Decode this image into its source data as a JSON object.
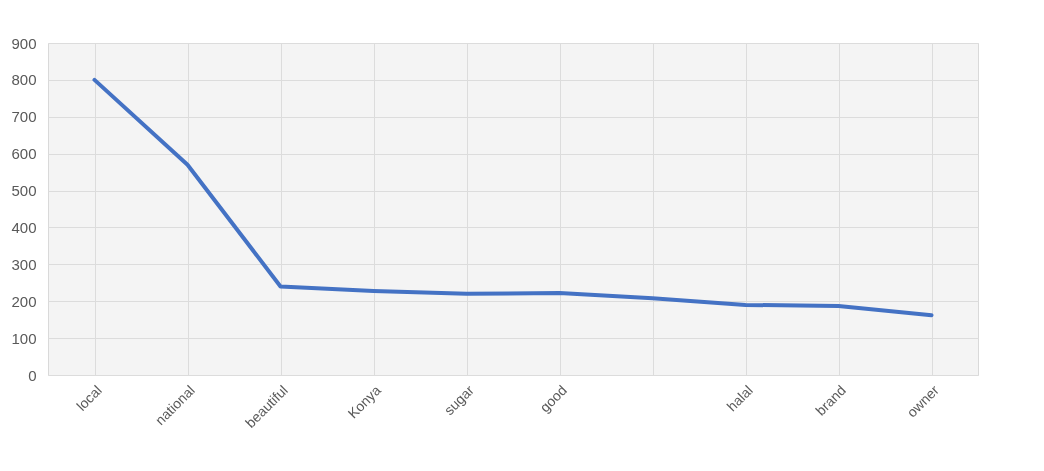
{
  "chart_data": {
    "type": "line",
    "categories": [
      "local",
      "national",
      "beautiful",
      "Konya",
      "sugar",
      "good",
      null,
      "halal",
      "brand",
      "owner"
    ],
    "series": [
      {
        "color": "#4472c4",
        "values": [
          800,
          570,
          240,
          228,
          220,
          222,
          208,
          190,
          187,
          162
        ]
      }
    ],
    "ylim": [
      0,
      900
    ],
    "yticks": [
      0,
      100,
      200,
      300,
      400,
      500,
      600,
      700,
      800,
      900
    ],
    "grid": true,
    "legend": false,
    "marker": "none",
    "line_style": "solid"
  }
}
